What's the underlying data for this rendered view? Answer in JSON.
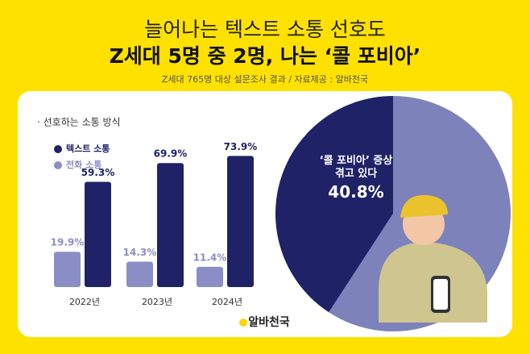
{
  "header": {
    "title": "늘어나는 텍스트 소통 선호도",
    "headline": "Z세대 5명 중 2명, 나는 ‘콜 포비아’",
    "source": "Z세대 765명 대상 설문조사 결과 / 자료제공 : 알바천국"
  },
  "chart_data": [
    {
      "type": "bar",
      "title": "· 선호하는 소통 방식",
      "categories": [
        "2022년",
        "2023년",
        "2024년"
      ],
      "series": [
        {
          "name": "텍스트 소통",
          "color": "#1f2266",
          "values": [
            59.3,
            69.9,
            73.9
          ],
          "value_labels": [
            "59.3%",
            "69.9%",
            "73.9%"
          ]
        },
        {
          "name": "전화 소통",
          "color": "#8a8ec4",
          "values": [
            19.9,
            14.3,
            11.4
          ],
          "value_labels": [
            "19.9%",
            "14.3%",
            "11.4%"
          ]
        }
      ],
      "legend": "top-left"
    },
    {
      "type": "pie",
      "categories": [
        "‘콜 포비아’ 증상 겪고 있다",
        null
      ],
      "values": [
        40.8,
        59.2
      ],
      "value_labels": [
        "40.8%",
        null
      ],
      "colors": [
        "#1f2266",
        "#7d82bb"
      ]
    }
  ],
  "footer": {
    "logo": "알바천국"
  }
}
